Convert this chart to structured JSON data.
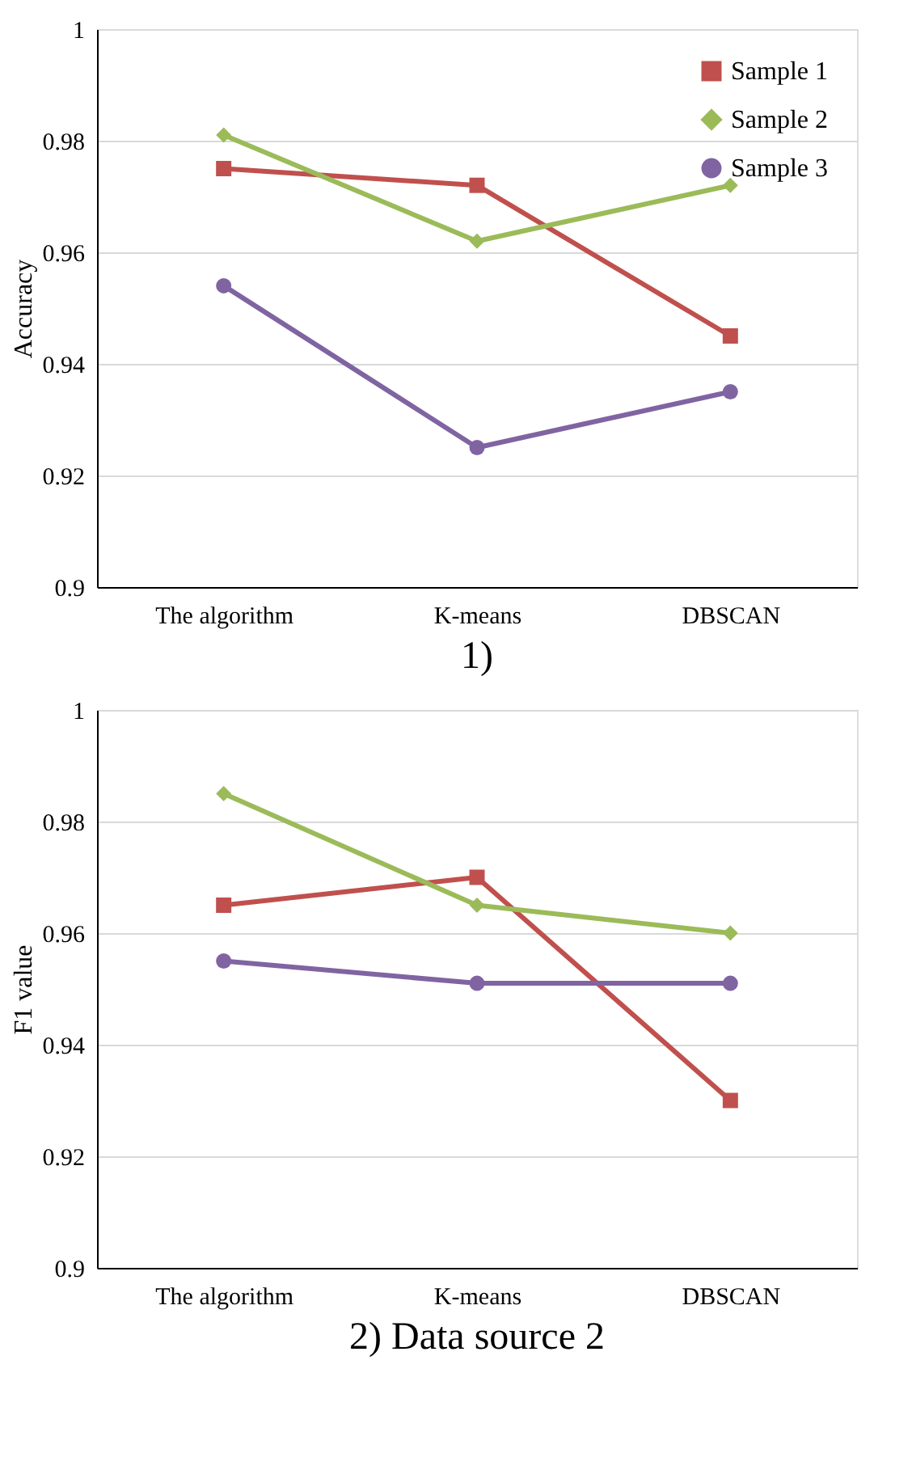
{
  "chart_data": [
    {
      "type": "line",
      "title": "1)",
      "ylabel": "Accuracy",
      "categories": [
        "The algorithm",
        "K-means",
        "DBSCAN"
      ],
      "ylim": [
        0.9,
        1
      ],
      "yticks": [
        0.9,
        0.92,
        0.94,
        0.96,
        0.98,
        1
      ],
      "grid": "y",
      "legend": "top right",
      "line_style": "solid",
      "series": [
        {
          "name": "Sample 1",
          "color": "#c0504d",
          "marker": "square",
          "values": [
            0.975,
            0.972,
            0.945
          ]
        },
        {
          "name": "Sample 2",
          "color": "#9bbb59",
          "marker": "diamond",
          "values": [
            0.981,
            0.962,
            0.972
          ]
        },
        {
          "name": "Sample 3",
          "color": "#8064a2",
          "marker": "circle",
          "values": [
            0.954,
            0.925,
            0.935
          ]
        }
      ]
    },
    {
      "type": "line",
      "title": "2) Data source 2",
      "ylabel": "F1 value",
      "categories": [
        "The algorithm",
        "K-means",
        "DBSCAN"
      ],
      "ylim": [
        0.9,
        1
      ],
      "yticks": [
        0.9,
        0.92,
        0.94,
        0.96,
        0.98,
        1
      ],
      "grid": "y",
      "legend": "top right",
      "line_style": "solid",
      "series": [
        {
          "name": "Sample 1",
          "color": "#c0504d",
          "marker": "square",
          "values": [
            0.965,
            0.97,
            0.93
          ]
        },
        {
          "name": "Sample 2",
          "color": "#9bbb59",
          "marker": "diamond",
          "values": [
            0.985,
            0.965,
            0.96
          ]
        },
        {
          "name": "Sample 3",
          "color": "#8064a2",
          "marker": "circle",
          "values": [
            0.955,
            0.951,
            0.951
          ]
        }
      ]
    }
  ]
}
